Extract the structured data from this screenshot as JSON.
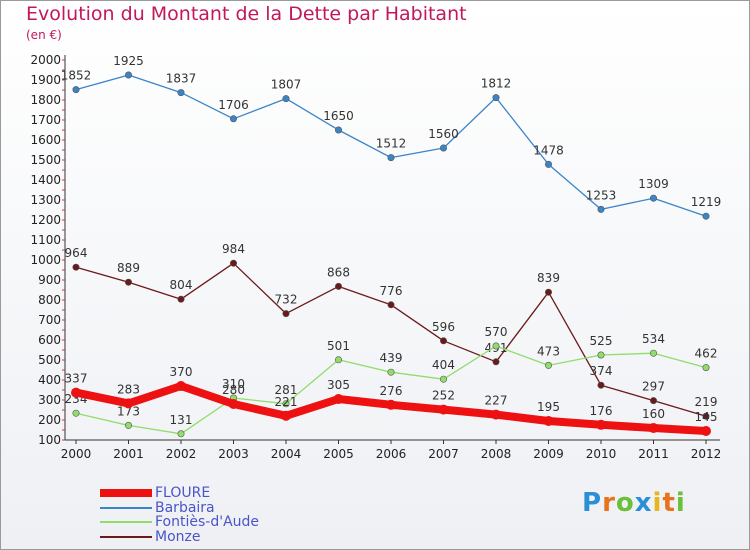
{
  "title": "Evolution du Montant de la Dette par Habitant",
  "unit": "(en €)",
  "logo": "Proxiti",
  "chart_data": {
    "type": "line",
    "title": "Evolution du Montant de la Dette par Habitant",
    "ylabel": "(en €)",
    "x": [
      "2000",
      "2001",
      "2002",
      "2003",
      "2004",
      "2005",
      "2006",
      "2007",
      "2008",
      "2009",
      "2010",
      "2011",
      "2012"
    ],
    "ylim": [
      100,
      2000
    ],
    "yticks": [
      100,
      200,
      300,
      400,
      500,
      600,
      700,
      800,
      900,
      1000,
      1100,
      1200,
      1300,
      1400,
      1500,
      1600,
      1700,
      1800,
      1900,
      2000
    ],
    "grid": false,
    "legend": "bottom-left",
    "series": [
      {
        "name": "Barbaira",
        "color": "#3a85c8",
        "values": [
          1852,
          1925,
          1837,
          1706,
          1807,
          1650,
          1512,
          1560,
          1812,
          1478,
          1253,
          1309,
          1219
        ]
      },
      {
        "name": "Monze",
        "color": "#6b1a1a",
        "values": [
          964,
          889,
          804,
          984,
          732,
          868,
          776,
          596,
          491,
          839,
          374,
          297,
          219
        ]
      },
      {
        "name": "Fontiès-d'Aude",
        "color": "#90dd6a",
        "values": [
          234,
          173,
          131,
          310,
          281,
          501,
          439,
          404,
          570,
          473,
          525,
          534,
          462
        ]
      },
      {
        "name": "FLOURE",
        "color": "#ee1111",
        "values": [
          337,
          283,
          370,
          280,
          221,
          305,
          276,
          252,
          227,
          195,
          176,
          160,
          145
        ]
      }
    ]
  },
  "legend": [
    {
      "name": "FLOURE",
      "color": "#ee1111",
      "thickness": 8
    },
    {
      "name": "Barbaira",
      "color": "#3a85c8",
      "thickness": 2
    },
    {
      "name": "Fontiès-d'Aude",
      "color": "#90dd6a",
      "thickness": 2
    },
    {
      "name": "Monze",
      "color": "#6b1a1a",
      "thickness": 2
    }
  ]
}
